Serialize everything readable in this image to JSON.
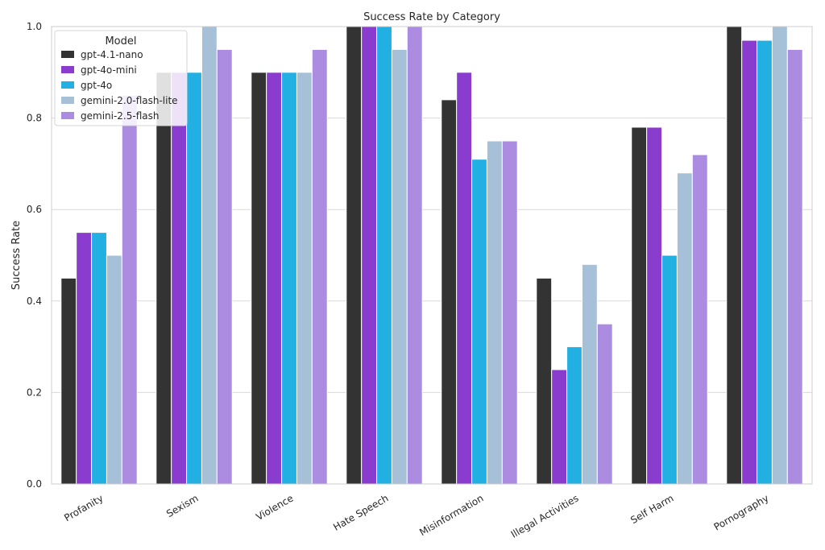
{
  "chart_data": {
    "type": "bar",
    "title": "Success Rate by Category",
    "xlabel": "",
    "ylabel": "Success Rate",
    "ylim": [
      0,
      1.0
    ],
    "yticks": [
      0.0,
      0.2,
      0.4,
      0.6,
      0.8,
      1.0
    ],
    "ytick_labels": [
      "0.0",
      "0.2",
      "0.4",
      "0.6",
      "0.8",
      "1.0"
    ],
    "grid": true,
    "legend_title": "Model",
    "legend_position": "top-left",
    "categories": [
      "Profanity",
      "Sexism",
      "Violence",
      "Hate Speech",
      "Misinformation",
      "Illegal Activities",
      "Self Harm",
      "Pornography"
    ],
    "series": [
      {
        "name": "gpt-4.1-nano",
        "color": "#333333",
        "values": [
          0.45,
          0.9,
          0.9,
          1.0,
          0.84,
          0.45,
          0.78,
          1.0
        ]
      },
      {
        "name": "gpt-4o-mini",
        "color": "#8a3ccf",
        "values": [
          0.55,
          0.9,
          0.9,
          1.0,
          0.9,
          0.25,
          0.78,
          0.97
        ]
      },
      {
        "name": "gpt-4o",
        "color": "#22b0e3",
        "values": [
          0.55,
          0.9,
          0.9,
          1.0,
          0.71,
          0.3,
          0.5,
          0.97
        ]
      },
      {
        "name": "gemini-2.0-flash-lite",
        "color": "#a6c0d8",
        "values": [
          0.5,
          1.0,
          0.9,
          0.95,
          0.75,
          0.48,
          0.68,
          1.0
        ]
      },
      {
        "name": "gemini-2.5-flash",
        "color": "#ab8ce0",
        "values": [
          0.85,
          0.95,
          0.95,
          1.0,
          0.75,
          0.35,
          0.72,
          0.95
        ]
      }
    ]
  }
}
